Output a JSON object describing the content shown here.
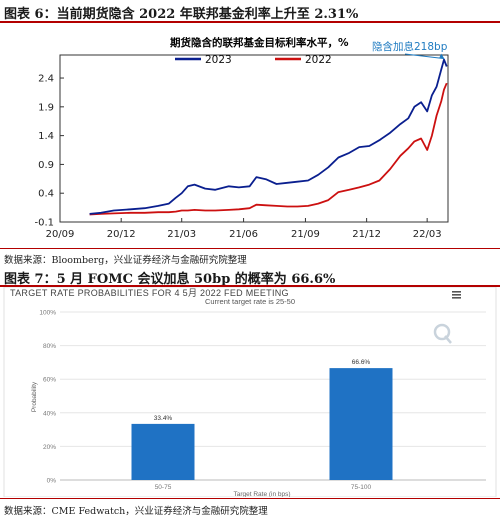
{
  "page": {
    "figure6_title": "图表 6：当前期货隐含 2022 年联邦基金利率上升至 2.31%",
    "figure6_source": "数据来源：Bloomberg，兴业证券经济与金融研究院整理",
    "figure7_title": "图表 7：5 月 FOMC 会议加息 50bp 的概率为 66.6%",
    "figure7_source": "数据来源：CME Fedwatch，兴业证券经济与金融研究院整理"
  },
  "colors": {
    "accent_red": "#b30000",
    "series_blue": "#0a1f8f",
    "series_red": "#cc1010",
    "bar_blue": "#1f72c4",
    "annotation": "#1f7bc1"
  },
  "widget": {
    "menu_icon": "hamburger-menu-icon",
    "logo_icon": "q-logo-icon"
  },
  "chart_data": [
    {
      "type": "line",
      "title": "期货隐含的联邦基金目标利率水平，%",
      "xlabel": "",
      "ylabel": "",
      "x_ticks": [
        "20/09",
        "20/12",
        "21/03",
        "21/06",
        "21/09",
        "21/12",
        "22/03"
      ],
      "x_domain": [
        "2020-09-01",
        "2022-04-01"
      ],
      "y_ticks": [
        "-0.1",
        "0.4",
        "0.9",
        "1.4",
        "1.9",
        "2.4"
      ],
      "ylim": [
        -0.1,
        2.8
      ],
      "legend_position": "top",
      "annotation": {
        "text": "隐含加息218bp",
        "x": "2022-03-28",
        "y": 2.72
      },
      "series": [
        {
          "name": "2023",
          "color": "#0a1f8f",
          "points": [
            [
              "2020-10-15",
              0.04
            ],
            [
              "2020-11-01",
              0.06
            ],
            [
              "2020-11-20",
              0.1
            ],
            [
              "2020-12-15",
              0.12
            ],
            [
              "2021-01-05",
              0.14
            ],
            [
              "2021-01-25",
              0.18
            ],
            [
              "2021-02-10",
              0.22
            ],
            [
              "2021-02-20",
              0.32
            ],
            [
              "2021-03-01",
              0.4
            ],
            [
              "2021-03-10",
              0.52
            ],
            [
              "2021-03-20",
              0.55
            ],
            [
              "2021-04-05",
              0.48
            ],
            [
              "2021-04-20",
              0.46
            ],
            [
              "2021-05-10",
              0.52
            ],
            [
              "2021-05-25",
              0.5
            ],
            [
              "2021-06-10",
              0.52
            ],
            [
              "2021-06-20",
              0.68
            ],
            [
              "2021-07-05",
              0.64
            ],
            [
              "2021-07-20",
              0.56
            ],
            [
              "2021-08-05",
              0.58
            ],
            [
              "2021-08-20",
              0.6
            ],
            [
              "2021-09-05",
              0.62
            ],
            [
              "2021-09-20",
              0.72
            ],
            [
              "2021-10-05",
              0.85
            ],
            [
              "2021-10-20",
              1.02
            ],
            [
              "2021-11-05",
              1.1
            ],
            [
              "2021-11-20",
              1.2
            ],
            [
              "2021-12-05",
              1.22
            ],
            [
              "2021-12-20",
              1.32
            ],
            [
              "2022-01-05",
              1.45
            ],
            [
              "2022-01-20",
              1.6
            ],
            [
              "2022-02-01",
              1.7
            ],
            [
              "2022-02-10",
              1.9
            ],
            [
              "2022-02-20",
              1.98
            ],
            [
              "2022-03-01",
              1.82
            ],
            [
              "2022-03-08",
              2.1
            ],
            [
              "2022-03-15",
              2.25
            ],
            [
              "2022-03-22",
              2.55
            ],
            [
              "2022-03-26",
              2.72
            ],
            [
              "2022-03-30",
              2.6
            ]
          ]
        },
        {
          "name": "2022",
          "color": "#cc1010",
          "points": [
            [
              "2020-10-15",
              0.03
            ],
            [
              "2020-11-01",
              0.04
            ],
            [
              "2020-11-20",
              0.05
            ],
            [
              "2020-12-15",
              0.06
            ],
            [
              "2021-01-05",
              0.06
            ],
            [
              "2021-01-25",
              0.07
            ],
            [
              "2021-02-10",
              0.07
            ],
            [
              "2021-02-20",
              0.08
            ],
            [
              "2021-03-01",
              0.1
            ],
            [
              "2021-03-10",
              0.1
            ],
            [
              "2021-03-20",
              0.11
            ],
            [
              "2021-04-05",
              0.1
            ],
            [
              "2021-04-20",
              0.1
            ],
            [
              "2021-05-10",
              0.11
            ],
            [
              "2021-05-25",
              0.12
            ],
            [
              "2021-06-10",
              0.14
            ],
            [
              "2021-06-20",
              0.2
            ],
            [
              "2021-07-05",
              0.19
            ],
            [
              "2021-07-20",
              0.18
            ],
            [
              "2021-08-05",
              0.17
            ],
            [
              "2021-08-20",
              0.17
            ],
            [
              "2021-09-05",
              0.18
            ],
            [
              "2021-09-20",
              0.22
            ],
            [
              "2021-10-05",
              0.28
            ],
            [
              "2021-10-20",
              0.42
            ],
            [
              "2021-11-05",
              0.46
            ],
            [
              "2021-11-20",
              0.5
            ],
            [
              "2021-12-05",
              0.55
            ],
            [
              "2021-12-20",
              0.62
            ],
            [
              "2022-01-05",
              0.82
            ],
            [
              "2022-01-20",
              1.05
            ],
            [
              "2022-02-01",
              1.18
            ],
            [
              "2022-02-10",
              1.3
            ],
            [
              "2022-02-20",
              1.35
            ],
            [
              "2022-03-01",
              1.15
            ],
            [
              "2022-03-08",
              1.4
            ],
            [
              "2022-03-15",
              1.75
            ],
            [
              "2022-03-22",
              2.0
            ],
            [
              "2022-03-26",
              2.2
            ],
            [
              "2022-03-30",
              2.31
            ]
          ]
        }
      ]
    },
    {
      "type": "bar",
      "title": "TARGET RATE PROBABILITIES FOR 4 5月 2022 FED MEETING",
      "subtitle": "Current target rate is 25-50",
      "xlabel": "Target Rate (in bps)",
      "ylabel": "Probability",
      "categories": [
        "50-75",
        "75-100"
      ],
      "values": [
        33.4,
        66.6
      ],
      "value_labels": [
        "33.4%",
        "66.6%"
      ],
      "y_ticks": [
        "0%",
        "20%",
        "40%",
        "60%",
        "80%",
        "100%"
      ],
      "ylim": [
        0,
        100
      ],
      "grid": true,
      "color": "#1f72c4"
    }
  ]
}
